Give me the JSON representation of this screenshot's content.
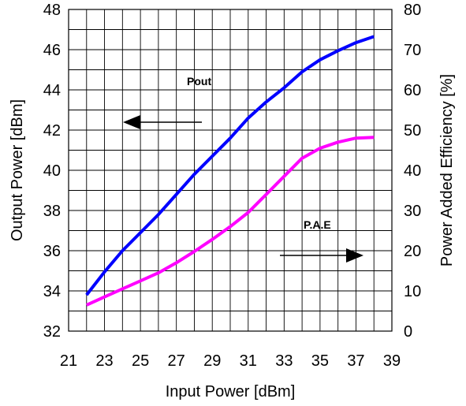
{
  "chart_data": {
    "type": "line",
    "xlabel": "Input Power [dBm]",
    "ylabel_left": "Output Power [dBm]",
    "ylabel_right": "Power Added Efficiency [%]",
    "xlim": [
      21,
      39
    ],
    "ylim_left": [
      32,
      48
    ],
    "ylim_right": [
      0,
      80
    ],
    "x_ticks": [
      21,
      23,
      25,
      27,
      29,
      31,
      33,
      35,
      37,
      39
    ],
    "y_left_ticks": [
      32,
      34,
      36,
      38,
      40,
      42,
      44,
      46,
      48
    ],
    "y_right_ticks": [
      0,
      10,
      20,
      30,
      40,
      50,
      60,
      70,
      80
    ],
    "grid": true,
    "series": [
      {
        "name": "Pout",
        "axis": "left",
        "color": "#0000ff",
        "x": [
          22,
          23,
          24,
          25,
          26,
          27,
          28,
          29,
          30,
          31,
          32,
          33,
          34,
          35,
          36,
          37,
          38
        ],
        "values": [
          33.8,
          34.95,
          36.0,
          36.9,
          37.8,
          38.8,
          39.8,
          40.7,
          41.6,
          42.6,
          43.4,
          44.1,
          44.9,
          45.5,
          45.95,
          46.35,
          46.65
        ]
      },
      {
        "name": "P.A.E",
        "axis": "right",
        "color": "#ff00ff",
        "x": [
          22,
          23,
          24,
          25,
          26,
          27,
          28,
          29,
          30,
          31,
          32,
          33,
          34,
          35,
          36,
          37,
          38
        ],
        "values": [
          6.5,
          8.5,
          10.5,
          12.5,
          14.5,
          17.0,
          19.8,
          22.8,
          26.0,
          29.5,
          34.0,
          38.5,
          43.0,
          45.5,
          47.0,
          48.0,
          48.2
        ]
      }
    ],
    "annotations": [
      {
        "text": "Pout",
        "arrow": "left"
      },
      {
        "text": "P.A.E",
        "arrow": "right"
      }
    ]
  }
}
